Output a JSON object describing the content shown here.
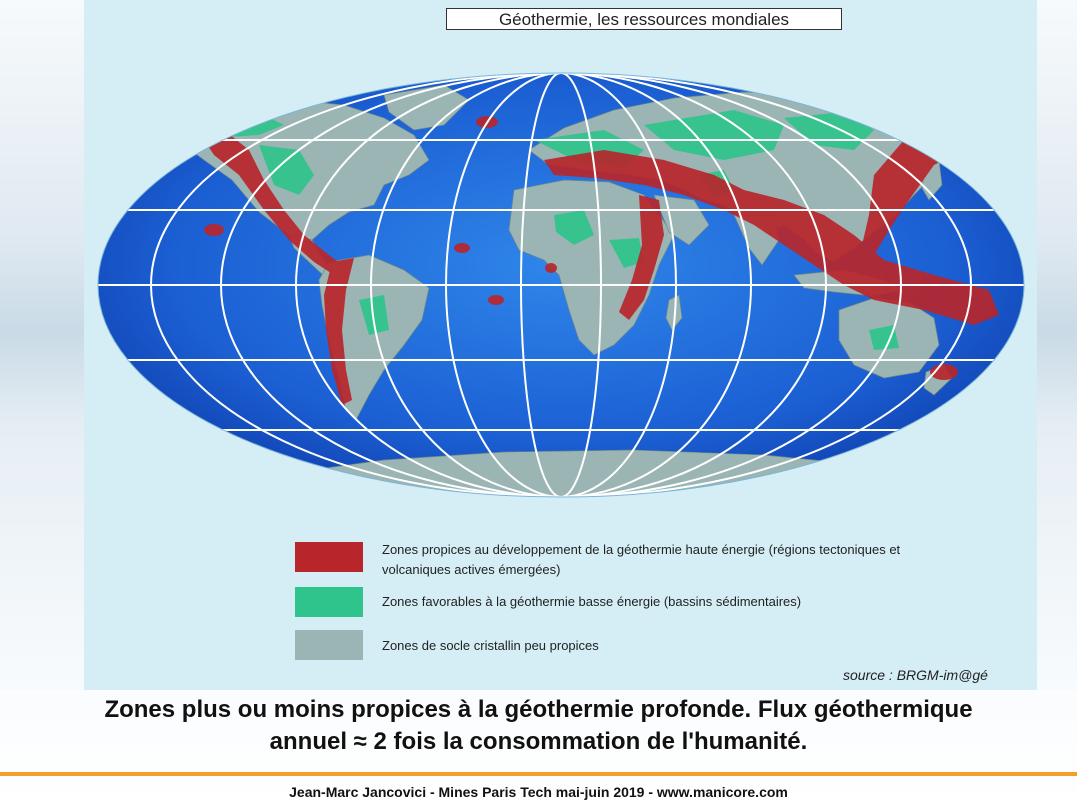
{
  "map_title": "Géothermie, les ressources mondiales",
  "legend": {
    "high_energy_line1": "Zones propices au développement de la géothermie haute énergie (régions tectoniques et",
    "high_energy_line2": "volcaniques actives émergées)",
    "low_energy": "Zones favorables à la géothermie basse énergie (bassins sédimentaires)",
    "crystalline": "Zones de socle cristallin peu propices"
  },
  "colors": {
    "high_energy": "#b8262c",
    "low_energy": "#2fc48b",
    "crystalline": "#9bb5b5",
    "ocean": "#1a5fd6"
  },
  "source": "source : BRGM-im@gé",
  "caption_line1": "Zones plus ou moins propices à la géothermie profonde. Flux géothermique",
  "caption_line2": "annuel ≈ 2 fois la consommation de l'humanité.",
  "footer": "Jean-Marc Jancovici - Mines Paris Tech mai-juin 2019 - www.manicore.com"
}
